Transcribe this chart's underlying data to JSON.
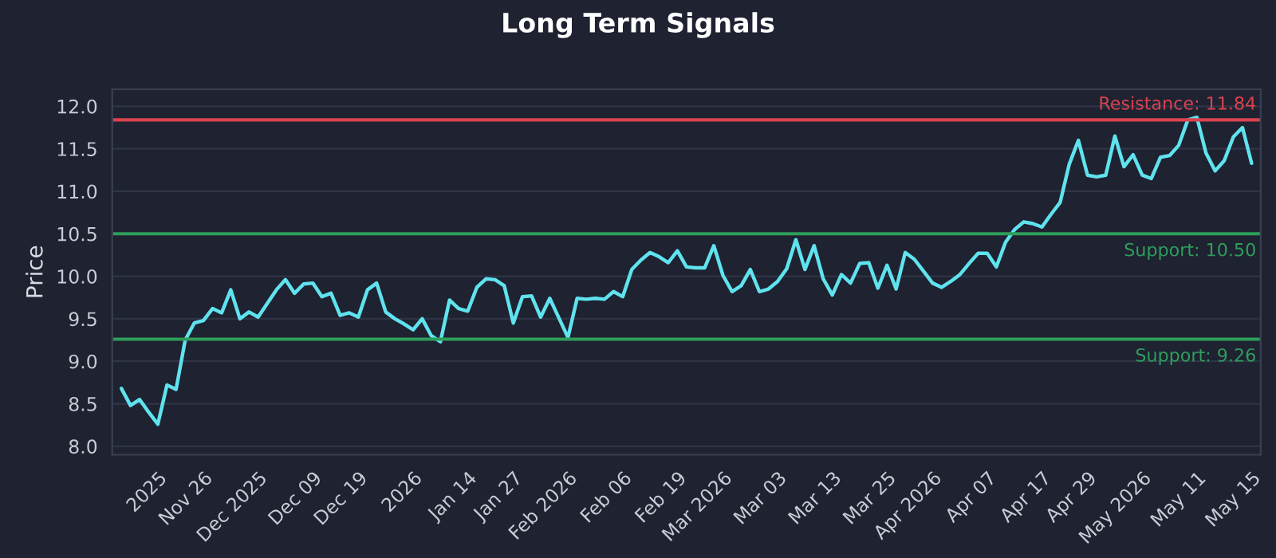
{
  "chart_data": {
    "type": "line",
    "title": "Long Term Signals",
    "ylabel": "Price",
    "categories": [
      null,
      null,
      null,
      null,
      "2025",
      null,
      null,
      null,
      null,
      "Nov 26",
      null,
      null,
      null,
      null,
      null,
      "Dec 2025",
      null,
      null,
      null,
      null,
      null,
      "Dec 09",
      null,
      null,
      null,
      null,
      "Dec 19",
      null,
      null,
      null,
      null,
      null,
      "2026",
      null,
      null,
      null,
      null,
      null,
      "Jan 14",
      null,
      null,
      null,
      null,
      "Jan 27",
      null,
      null,
      null,
      null,
      null,
      "Feb 2026",
      null,
      null,
      null,
      null,
      null,
      "Feb 06",
      null,
      null,
      null,
      null,
      null,
      "Feb 19",
      null,
      null,
      null,
      null,
      "Mar 2026",
      null,
      null,
      null,
      null,
      null,
      "Mar 03",
      null,
      null,
      null,
      null,
      null,
      "Mar 13",
      null,
      null,
      null,
      null,
      null,
      "Mar 25",
      null,
      null,
      null,
      null,
      "Apr 2026",
      null,
      null,
      null,
      null,
      null,
      "Apr 07",
      null,
      null,
      null,
      null,
      null,
      "Apr 17",
      null,
      null,
      null,
      null,
      "Apr 29",
      null,
      null,
      null,
      null,
      null,
      "May 2026",
      null,
      null,
      null,
      null,
      null,
      "May 11",
      null,
      null,
      null,
      null,
      null,
      "May 15"
    ],
    "series": [
      {
        "color": "#5fe3ee",
        "values": [
          8.68,
          8.48,
          8.55,
          8.4,
          8.26,
          8.72,
          8.67,
          9.25,
          9.45,
          9.48,
          9.62,
          9.57,
          9.84,
          9.5,
          9.58,
          9.52,
          9.68,
          9.84,
          9.96,
          9.8,
          9.91,
          9.92,
          9.76,
          9.8,
          9.54,
          9.57,
          9.52,
          9.84,
          9.92,
          9.58,
          9.5,
          9.44,
          9.37,
          9.5,
          9.3,
          9.23,
          9.72,
          9.62,
          9.59,
          9.87,
          9.97,
          9.96,
          9.89,
          9.45,
          9.76,
          9.77,
          9.52,
          9.74,
          9.51,
          9.28,
          9.74,
          9.73,
          9.74,
          9.73,
          9.82,
          9.76,
          10.08,
          10.19,
          10.28,
          10.23,
          10.16,
          10.3,
          10.11,
          10.1,
          10.1,
          10.36,
          10.01,
          9.82,
          9.89,
          10.08,
          9.82,
          9.85,
          9.94,
          10.09,
          10.43,
          10.08,
          10.36,
          9.97,
          9.78,
          10.02,
          9.92,
          10.15,
          10.16,
          9.86,
          10.13,
          9.85,
          10.28,
          10.2,
          10.06,
          9.92,
          9.87,
          9.94,
          10.02,
          10.15,
          10.27,
          10.27,
          10.11,
          10.4,
          10.55,
          10.64,
          10.62,
          10.58,
          10.73,
          10.87,
          11.32,
          11.6,
          11.19,
          11.17,
          11.19,
          11.65,
          11.29,
          11.43,
          11.19,
          11.15,
          11.4,
          11.42,
          11.54,
          11.84,
          11.87,
          11.45,
          11.24,
          11.36,
          11.64,
          11.75,
          11.33
        ]
      }
    ],
    "ylim": [
      7.9,
      12.2
    ],
    "yticks": [
      {
        "value": 8,
        "label": "8.0"
      },
      8.5,
      {
        "value": 9,
        "label": "9.0"
      },
      9.5,
      {
        "value": 10,
        "label": "10.0"
      },
      10.5,
      {
        "value": 11,
        "label": "11.0"
      },
      11.5,
      {
        "value": 12,
        "label": "12.0"
      }
    ],
    "grid": "y",
    "line_style": "solid",
    "ref_lines": [
      {
        "axis": "y",
        "value": 11.84,
        "label": "Resistance: 11.84",
        "color": "#d9434f"
      },
      {
        "axis": "y",
        "value": 10.5,
        "label": "Support: 10.50",
        "color": "#2e9e5b"
      },
      {
        "axis": "y",
        "value": 9.26,
        "label": "Support: 9.26",
        "color": "#2e9e5b"
      }
    ]
  }
}
